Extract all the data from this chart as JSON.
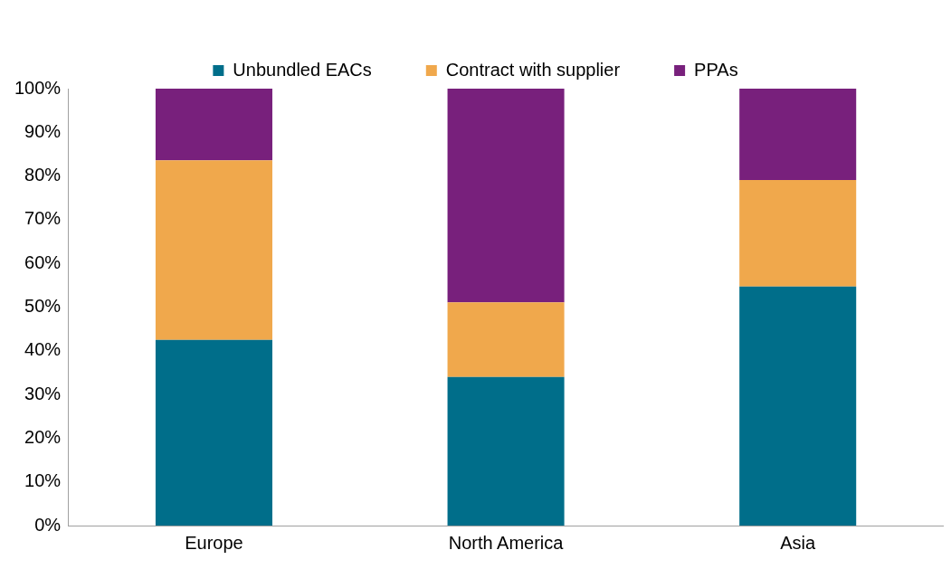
{
  "chart_data": {
    "type": "bar",
    "stacked": true,
    "categories": [
      "Europe",
      "North America",
      "Asia"
    ],
    "series": [
      {
        "name": "Unbundled EACs",
        "color": "#006e8a",
        "values": [
          42.5,
          34.0,
          54.7
        ]
      },
      {
        "name": "Contract with supplier",
        "color": "#f0a84c",
        "values": [
          41.1,
          17.1,
          24.4
        ]
      },
      {
        "name": "PPAs",
        "color": "#78207c",
        "values": [
          16.4,
          48.9,
          20.9
        ]
      }
    ],
    "ylim": [
      0,
      100
    ],
    "yticks": [
      {
        "value": 0,
        "label": "0%"
      },
      {
        "value": 10,
        "label": "10%"
      },
      {
        "value": 20,
        "label": "20%"
      },
      {
        "value": 30,
        "label": "30%"
      },
      {
        "value": 40,
        "label": "40%"
      },
      {
        "value": 50,
        "label": "50%"
      },
      {
        "value": 60,
        "label": "60%"
      },
      {
        "value": 70,
        "label": "70%"
      },
      {
        "value": 80,
        "label": "80%"
      },
      {
        "value": 90,
        "label": "90%"
      },
      {
        "value": 100,
        "label": "100%"
      }
    ],
    "grid": false,
    "legend": "top"
  }
}
